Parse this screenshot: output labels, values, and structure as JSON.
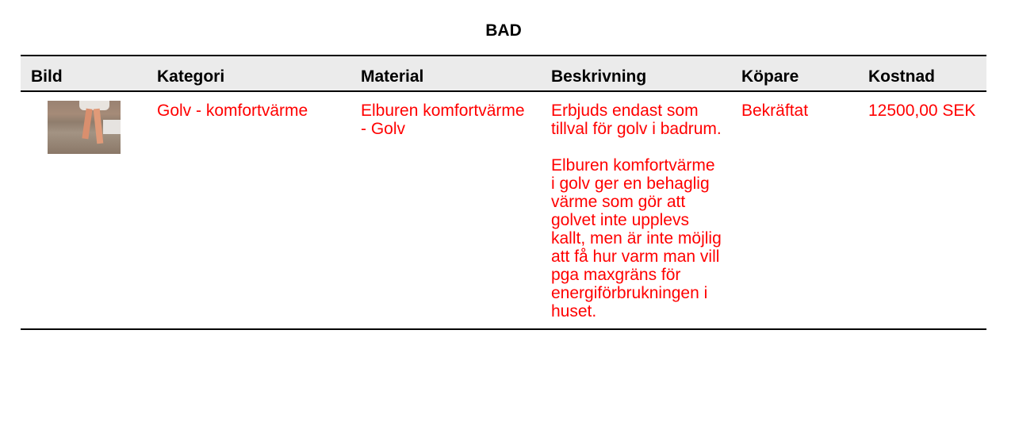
{
  "title": "BAD",
  "table": {
    "headers": [
      "Bild",
      "Kategori",
      "Material",
      "Beskrivning",
      "Köpare",
      "Kostnad"
    ],
    "rows": [
      {
        "image_icon": "bathroom-floor-feet-photo",
        "kategori": "Golv - komfortvärme",
        "material": "Elburen komfortvärme - Golv",
        "beskrivning": [
          "Erbjuds endast som tillval för golv i badrum.",
          "Elburen komfortvärme i golv ger en behaglig värme som gör att golvet inte upplevs kallt, men är inte möjlig att få hur varm man vill pga maxgräns för energiförbrukningen i huset."
        ],
        "kopare": "Bekräftat",
        "kostnad": "12500,00 SEK"
      }
    ]
  },
  "colors": {
    "text_value": "#ff0000",
    "header_bg": "#ebebeb"
  }
}
